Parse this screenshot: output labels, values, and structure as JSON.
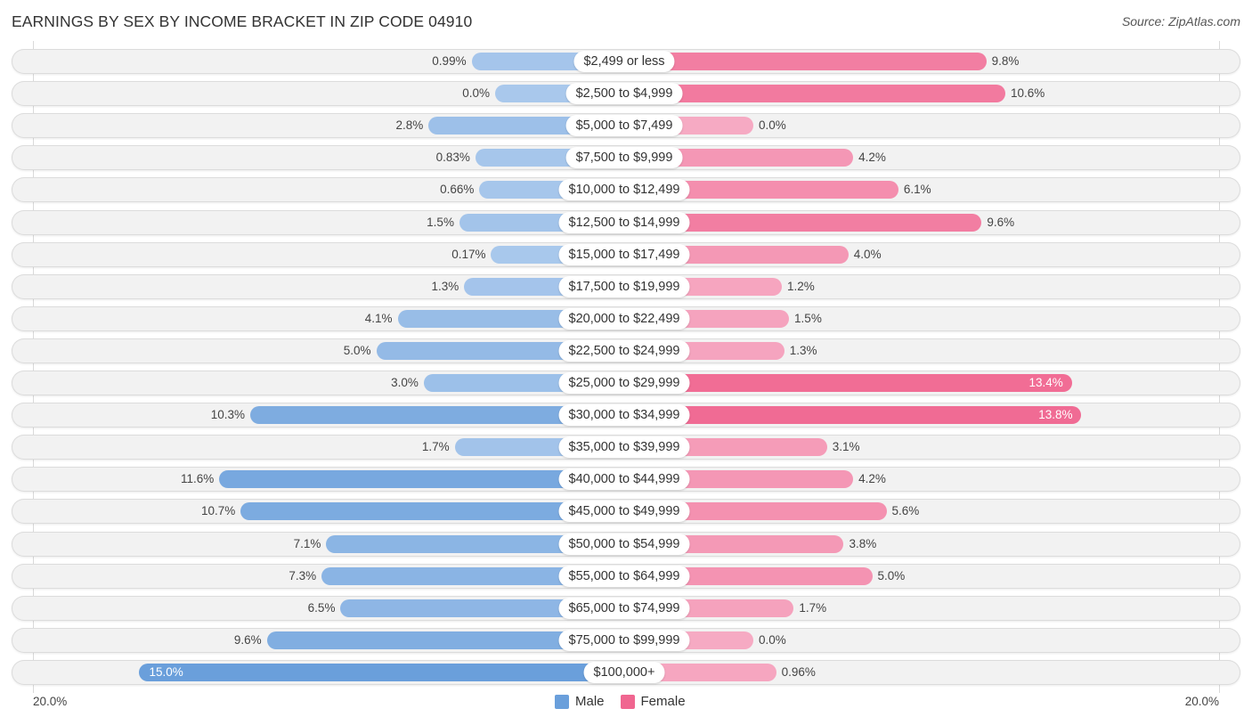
{
  "title": "EARNINGS BY SEX BY INCOME BRACKET IN ZIP CODE 04910",
  "source": "Source: ZipAtlas.com",
  "colors": {
    "male_light": "#a9c8ec",
    "male_dark": "#6a9fdb",
    "female_light": "#f6aac3",
    "female_dark": "#f06690",
    "legend_male": "#6a9fdb",
    "legend_female": "#f06690"
  },
  "legend": {
    "male": "Male",
    "female": "Female"
  },
  "axis": {
    "left_label": "20.0%",
    "right_label": "20.0%"
  },
  "chart_data": {
    "type": "bar",
    "orientation": "horizontal-diverging",
    "title": "EARNINGS BY SEX BY INCOME BRACKET IN ZIP CODE 04910",
    "xlabel": "",
    "ylabel": "",
    "xlim": [
      -20,
      20
    ],
    "tick_labels": [
      "20.0%",
      "20.0%"
    ],
    "legend_position": "bottom-center",
    "categories": [
      "$2,499 or less",
      "$2,500 to $4,999",
      "$5,000 to $7,499",
      "$7,500 to $9,999",
      "$10,000 to $12,499",
      "$12,500 to $14,999",
      "$15,000 to $17,499",
      "$17,500 to $19,999",
      "$20,000 to $22,499",
      "$22,500 to $24,999",
      "$25,000 to $29,999",
      "$30,000 to $34,999",
      "$35,000 to $39,999",
      "$40,000 to $44,999",
      "$45,000 to $49,999",
      "$50,000 to $54,999",
      "$55,000 to $64,999",
      "$65,000 to $74,999",
      "$75,000 to $99,999",
      "$100,000+"
    ],
    "series": [
      {
        "name": "Male",
        "values": [
          0.99,
          0.0,
          2.8,
          0.83,
          0.66,
          1.5,
          0.17,
          1.3,
          4.1,
          5.0,
          3.0,
          10.3,
          1.7,
          11.6,
          10.7,
          7.1,
          7.3,
          6.5,
          9.6,
          15.0
        ],
        "labels": [
          "0.99%",
          "0.0%",
          "2.8%",
          "0.83%",
          "0.66%",
          "1.5%",
          "0.17%",
          "1.3%",
          "4.1%",
          "5.0%",
          "3.0%",
          "10.3%",
          "1.7%",
          "11.6%",
          "10.7%",
          "7.1%",
          "7.3%",
          "6.5%",
          "9.6%",
          "15.0%"
        ]
      },
      {
        "name": "Female",
        "values": [
          9.8,
          10.6,
          0.0,
          4.2,
          6.1,
          9.6,
          4.0,
          1.2,
          1.5,
          1.3,
          13.4,
          13.8,
          3.1,
          4.2,
          5.6,
          3.8,
          5.0,
          1.7,
          0.0,
          0.96
        ],
        "labels": [
          "9.8%",
          "10.6%",
          "0.0%",
          "4.2%",
          "6.1%",
          "9.6%",
          "4.0%",
          "1.2%",
          "1.5%",
          "1.3%",
          "13.4%",
          "13.8%",
          "3.1%",
          "4.2%",
          "5.6%",
          "3.8%",
          "5.0%",
          "1.7%",
          "0.0%",
          "0.96%"
        ]
      }
    ]
  }
}
